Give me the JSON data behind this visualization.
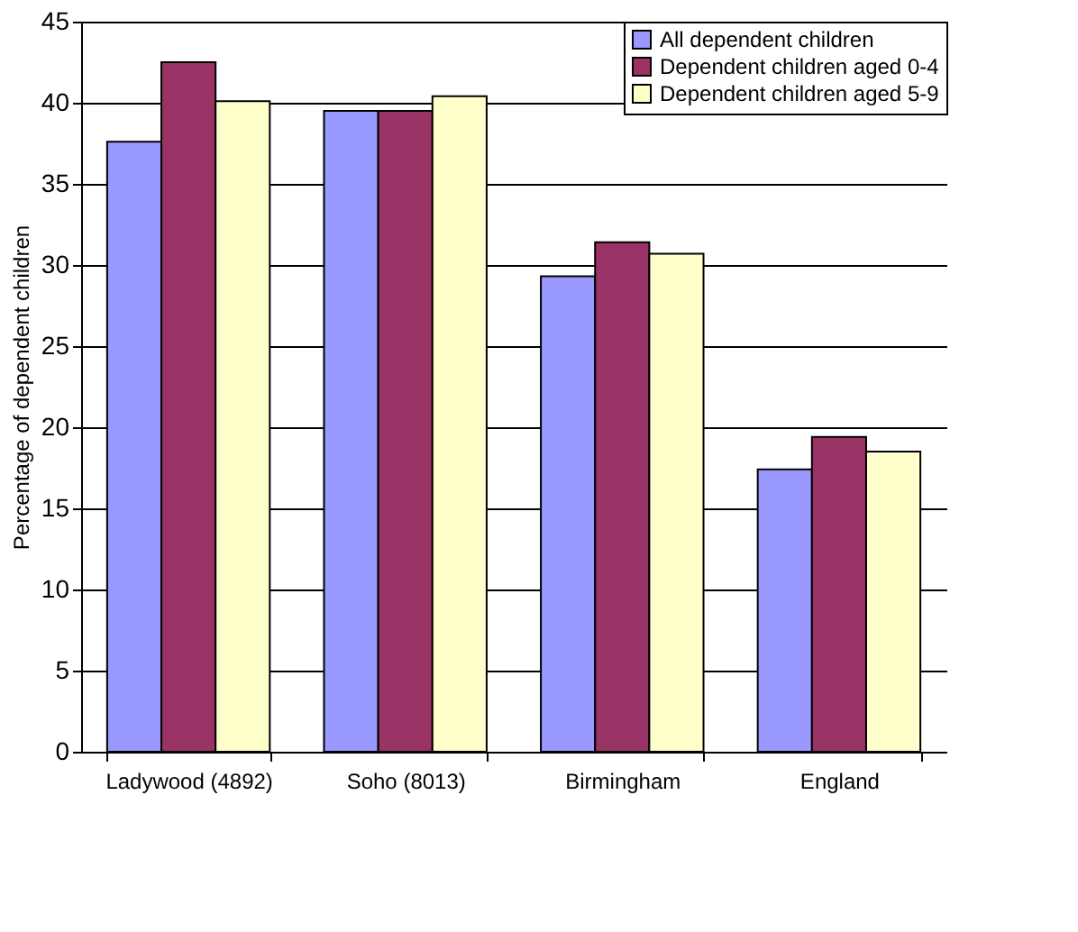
{
  "chart_data": {
    "type": "bar",
    "ylabel": "Percentage of dependent children",
    "categories": [
      "Ladywood (4892)",
      "Soho (8013)",
      "Birmingham",
      "England"
    ],
    "series": [
      {
        "name": "All dependent children",
        "color": "#9999ff",
        "values": [
          37.6,
          39.5,
          29.3,
          17.4
        ]
      },
      {
        "name": "Dependent children aged 0-4",
        "color": "#993366",
        "values": [
          42.5,
          39.5,
          31.4,
          19.4
        ]
      },
      {
        "name": "Dependent children aged 5-9",
        "color": "#ffffcc",
        "values": [
          40.1,
          40.4,
          30.7,
          18.5
        ]
      }
    ],
    "ylim": [
      0,
      45
    ],
    "yticks": [
      0,
      5,
      10,
      15,
      20,
      25,
      30,
      35,
      40,
      45
    ],
    "grid": "y",
    "legend": "top right"
  }
}
